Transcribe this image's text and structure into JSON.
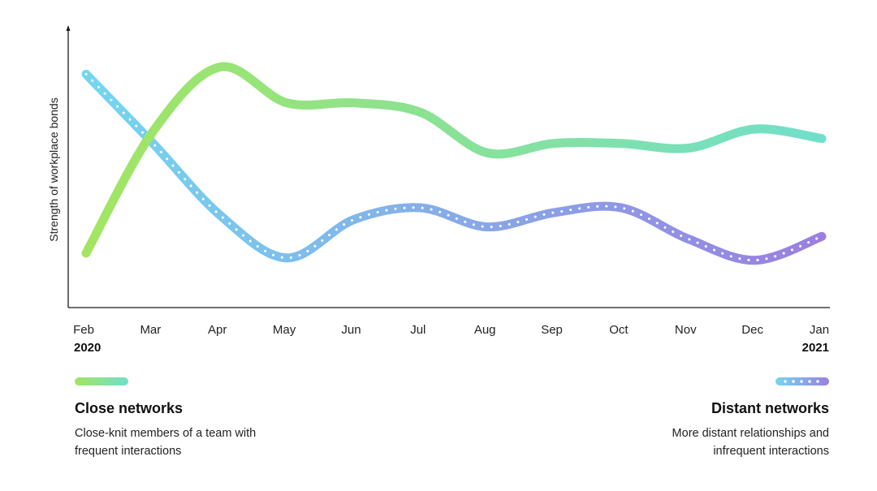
{
  "chart_data": {
    "type": "line",
    "ylabel": "Strength of workplace bonds",
    "categories": [
      "Feb",
      "Mar",
      "Apr",
      "May",
      "Jun",
      "Jul",
      "Aug",
      "Sep",
      "Oct",
      "Nov",
      "Dec",
      "Jan"
    ],
    "year_start": "2020",
    "year_end": "2021",
    "ylim": [
      0,
      100
    ],
    "grid": false,
    "series": [
      {
        "name": "Close networks",
        "description": "Close-knit members of a team with\nfrequent interactions",
        "style": "solid",
        "colors": [
          "#a2e561",
          "#70dfcb"
        ],
        "values": [
          15,
          66,
          93,
          78,
          78,
          74,
          57,
          61,
          61,
          59,
          67,
          63
        ]
      },
      {
        "name": "Distant networks",
        "description": "More distant relationships and\ninfrequent interactions",
        "style": "dotted",
        "colors": [
          "#73d7f0",
          "#9a7fe0"
        ],
        "values": [
          90,
          61,
          31,
          13,
          29,
          34,
          26,
          32,
          34,
          21,
          12,
          22
        ]
      }
    ]
  }
}
